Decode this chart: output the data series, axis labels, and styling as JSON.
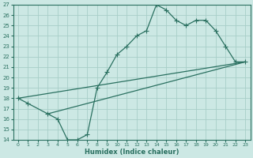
{
  "background_color": "#cce8e4",
  "grid_color": "#a8cec8",
  "line_color": "#2a7060",
  "xlim": [
    -0.5,
    23.5
  ],
  "ylim": [
    14,
    27
  ],
  "xlabel": "Humidex (Indice chaleur)",
  "xticks": [
    0,
    1,
    2,
    3,
    4,
    5,
    6,
    7,
    8,
    9,
    10,
    11,
    12,
    13,
    14,
    15,
    16,
    17,
    18,
    19,
    20,
    21,
    22,
    23
  ],
  "yticks": [
    14,
    15,
    16,
    17,
    18,
    19,
    20,
    21,
    22,
    23,
    24,
    25,
    26,
    27
  ],
  "curve1_x": [
    0,
    1,
    3,
    4,
    5,
    6,
    7,
    8,
    9,
    10,
    11,
    12,
    13,
    14,
    15,
    16,
    17,
    18,
    19,
    20,
    21,
    22,
    23
  ],
  "curve1_y": [
    18.0,
    17.5,
    16.5,
    16.0,
    14.0,
    14.0,
    14.5,
    19.0,
    20.5,
    22.2,
    23.0,
    24.0,
    24.5,
    27.0,
    26.5,
    25.5,
    25.0,
    25.5,
    25.5,
    24.5,
    23.0,
    21.5,
    21.5
  ],
  "curve2_x": [
    0,
    23
  ],
  "curve2_y": [
    18.0,
    21.5
  ],
  "curve3_x": [
    3,
    23
  ],
  "curve3_y": [
    16.5,
    21.5
  ]
}
